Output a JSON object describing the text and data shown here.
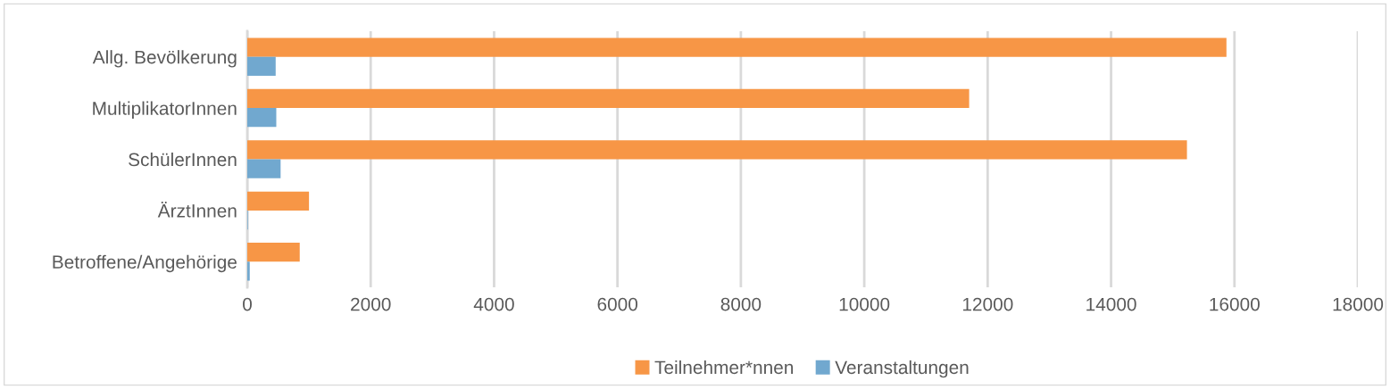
{
  "chart_data": {
    "type": "bar",
    "orientation": "horizontal",
    "categories": [
      "Allg. Bevölkerung",
      "MultiplikatorInnen",
      "SchülerInnen",
      "ÄrztInnen",
      "Betroffene/Angehörige"
    ],
    "series": [
      {
        "name": "Teilnehmer*nnen",
        "color": "#f79646",
        "values": [
          15870,
          11700,
          15230,
          1000,
          850
        ]
      },
      {
        "name": "Veranstaltungen",
        "color": "#71a8cf",
        "values": [
          460,
          470,
          540,
          10,
          40
        ]
      }
    ],
    "xlim": [
      0,
      18000
    ],
    "xticks": [
      0,
      2000,
      4000,
      6000,
      8000,
      10000,
      12000,
      14000,
      16000,
      18000
    ],
    "grid": "x",
    "legend": "bottom"
  }
}
